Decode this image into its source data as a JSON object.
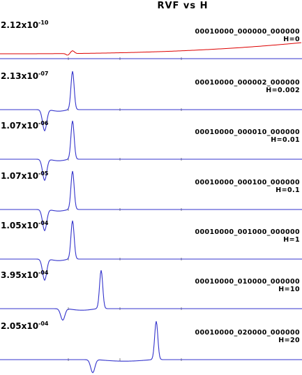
{
  "chart_data": {
    "type": "line",
    "title": "RVF vs H",
    "colors": {
      "ref": "#dd0000",
      "signal": "#3333cc",
      "tick": "#666666"
    },
    "panels": [
      {
        "scale_mant": "2.12x10",
        "scale_exp": "-10",
        "code": "00010000_000000_000000",
        "h_label": "H=0",
        "dip": null,
        "peak": null
      },
      {
        "scale_mant": "2.13x10",
        "scale_exp": "-07",
        "code": "00010000_000002_000000",
        "h_label": "H=0.002",
        "dip": [
          64,
          -0.55
        ],
        "peak": [
          104,
          1.0
        ]
      },
      {
        "scale_mant": "1.07x10",
        "scale_exp": "-06",
        "code": "00010000_000010_000000",
        "h_label": "H=0.01",
        "dip": [
          64,
          -0.55
        ],
        "peak": [
          104,
          1.0
        ]
      },
      {
        "scale_mant": "1.07x10",
        "scale_exp": "-05",
        "code": "00010000_000100_000000",
        "h_label": "H=0.1",
        "dip": [
          64,
          -0.55
        ],
        "peak": [
          104,
          1.0
        ]
      },
      {
        "scale_mant": "1.05x10",
        "scale_exp": "-04",
        "code": "00010000_001000_000000",
        "h_label": "H=1",
        "dip": [
          64,
          -0.55
        ],
        "peak": [
          104,
          1.0
        ]
      },
      {
        "scale_mant": "3.95x10",
        "scale_exp": "-04",
        "code": "00010000_010000_000000",
        "h_label": "H=10",
        "dip": [
          90,
          -0.3
        ],
        "peak": [
          145,
          1.0
        ]
      },
      {
        "scale_mant": "2.05x10",
        "scale_exp": "-04",
        "code": "00010000_020000_000000",
        "h_label": "H=20",
        "dip": [
          133,
          -0.34
        ],
        "peak": [
          224,
          1.0
        ]
      }
    ]
  }
}
